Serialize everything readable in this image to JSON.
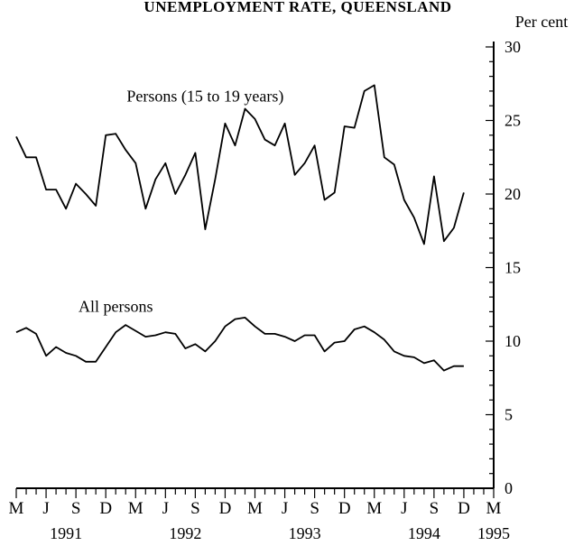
{
  "chart_data": {
    "type": "line",
    "title": "UNEMPLOYMENT RATE, QUEENSLAND",
    "ylabel": "Per cent",
    "ylim": [
      0,
      30
    ],
    "yticks": [
      0,
      5,
      10,
      15,
      20,
      25,
      30
    ],
    "x_month_labels": [
      "M",
      "J",
      "S",
      "D",
      "M",
      "J",
      "S",
      "D",
      "M",
      "J",
      "S",
      "D",
      "M",
      "J",
      "S",
      "D",
      "M"
    ],
    "x_year_labels": [
      {
        "label": "1991",
        "month_index": 5
      },
      {
        "label": "1992",
        "month_index": 17
      },
      {
        "label": "1993",
        "month_index": 29
      },
      {
        "label": "1994",
        "month_index": 41
      },
      {
        "label": "1995",
        "month_index": 48
      }
    ],
    "x_range_months": [
      0,
      48
    ],
    "series": [
      {
        "name": "Persons (15 to 19 years)",
        "label_anchor": {
          "month_index": 19,
          "value": 26.3
        },
        "values": [
          23.9,
          22.5,
          22.5,
          20.3,
          20.3,
          19.0,
          20.7,
          20.0,
          19.2,
          24.0,
          24.1,
          23.0,
          22.1,
          19.0,
          21.0,
          22.1,
          20.0,
          21.3,
          22.8,
          17.6,
          21.0,
          24.8,
          23.3,
          25.8,
          25.1,
          23.7,
          23.3,
          24.8,
          21.3,
          22.1,
          23.3,
          19.6,
          20.1,
          24.6,
          24.5,
          27.0,
          27.4,
          22.5,
          22.0,
          19.6,
          18.4,
          16.6,
          21.2,
          16.8,
          17.7,
          20.1
        ]
      },
      {
        "name": "All persons",
        "label_anchor": {
          "month_index": 10,
          "value": 12.0
        },
        "values": [
          10.6,
          10.9,
          10.5,
          9.0,
          9.6,
          9.2,
          9.0,
          8.6,
          8.6,
          9.6,
          10.6,
          11.1,
          10.7,
          10.3,
          10.4,
          10.6,
          10.5,
          9.5,
          9.8,
          9.3,
          10.0,
          11.0,
          11.5,
          11.6,
          11.0,
          10.5,
          10.5,
          10.3,
          10.0,
          10.4,
          10.4,
          9.3,
          9.9,
          10.0,
          10.8,
          11.0,
          10.6,
          10.1,
          9.3,
          9.0,
          8.9,
          8.5,
          8.7,
          8.0,
          8.3,
          8.3
        ]
      }
    ],
    "grid": false,
    "legend": "inline"
  }
}
